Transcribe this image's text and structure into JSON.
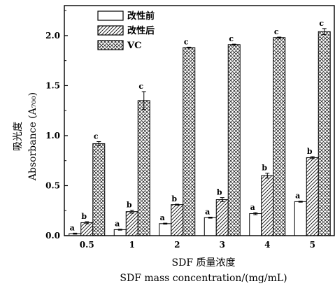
{
  "chart_data": {
    "type": "bar",
    "categories": [
      "0.5",
      "1",
      "2",
      "3",
      "4",
      "5"
    ],
    "xlabel": [
      "SDF 质量浓度",
      "SDF mass concentration/(mg/mL)"
    ],
    "ylabel": [
      "吸光度",
      "Absorbance (A₇₀₀)"
    ],
    "ylim": [
      0,
      2.3
    ],
    "yticks": [
      "0.0",
      "0.5",
      "1.0",
      "1.5",
      "2.0"
    ],
    "legend_position": "top-left",
    "series": [
      {
        "name": "改性前",
        "pattern": "empty",
        "values": [
          0.02,
          0.06,
          0.12,
          0.18,
          0.22,
          0.34
        ],
        "errors": [
          0.005,
          0.005,
          0.005,
          0.005,
          0.01,
          0.005
        ],
        "labels": [
          "a",
          "a",
          "a",
          "a",
          "a",
          "a"
        ]
      },
      {
        "name": "改性后",
        "pattern": "hatch",
        "values": [
          0.13,
          0.24,
          0.31,
          0.36,
          0.6,
          0.78
        ],
        "errors": [
          0.01,
          0.015,
          0.005,
          0.02,
          0.025,
          0.01
        ],
        "labels": [
          "b",
          "b",
          "b",
          "b",
          "b",
          "b"
        ]
      },
      {
        "name": "VC",
        "pattern": "crosshatch",
        "values": [
          0.92,
          1.35,
          1.88,
          1.91,
          1.98,
          2.04
        ],
        "errors": [
          0.02,
          0.09,
          0.005,
          0.005,
          0.005,
          0.03
        ],
        "labels": [
          "c",
          "c",
          "c",
          "c",
          "c",
          "c"
        ]
      }
    ]
  }
}
